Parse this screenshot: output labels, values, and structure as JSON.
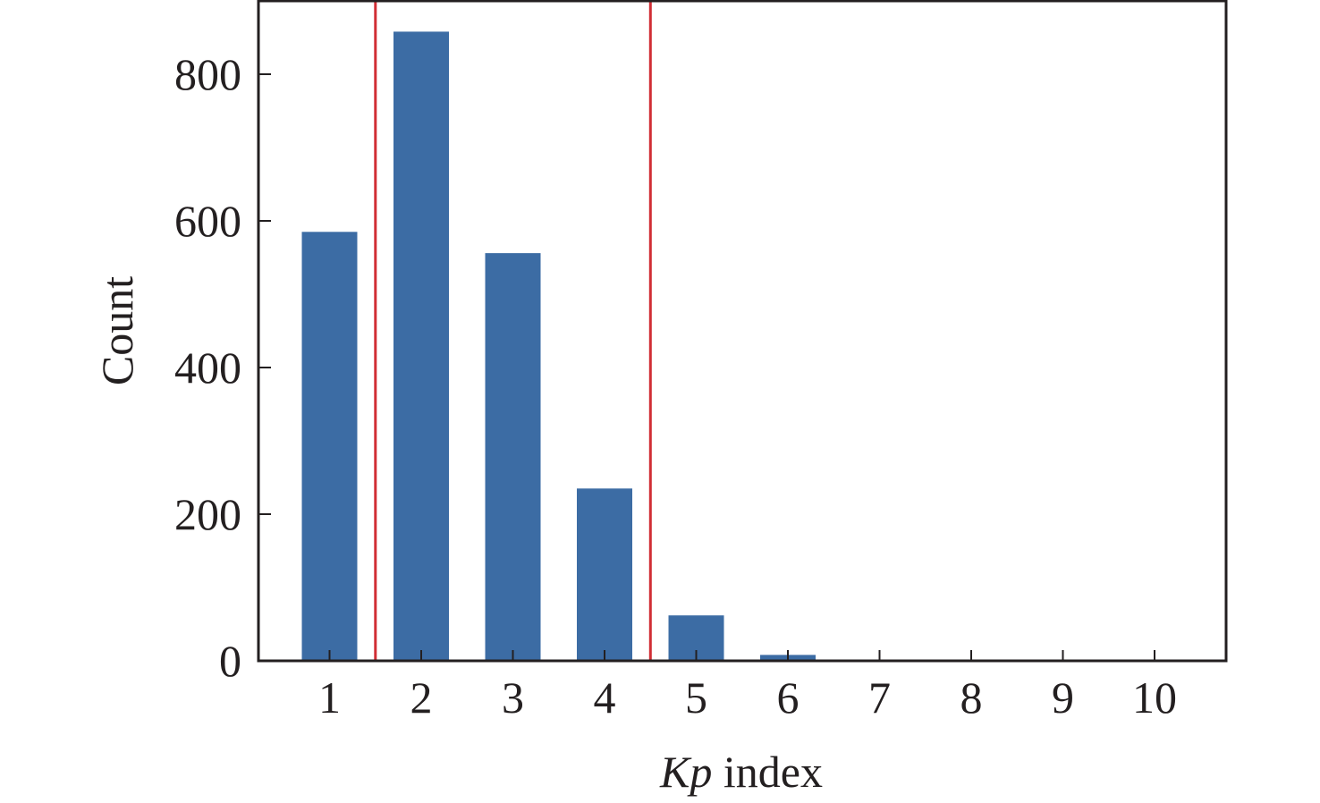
{
  "chart_data": {
    "type": "bar",
    "title": "",
    "xlabel_italic": "Kp",
    "xlabel_rest": " index",
    "ylabel": "Count",
    "categories": [
      "1",
      "2",
      "3",
      "4",
      "5",
      "6",
      "7",
      "8",
      "9",
      "10"
    ],
    "values": [
      585,
      858,
      556,
      235,
      62,
      8,
      1,
      0,
      0,
      0
    ],
    "ylim": [
      0,
      900
    ],
    "yticks": [
      "0",
      "200",
      "400",
      "600",
      "800"
    ],
    "grid": false,
    "legend": "none",
    "reference_lines_x": [
      1.5,
      4.5
    ],
    "bar_color": "#3c6ca4",
    "reference_line_color": "#d12e35",
    "axis_color": "#231f20"
  }
}
